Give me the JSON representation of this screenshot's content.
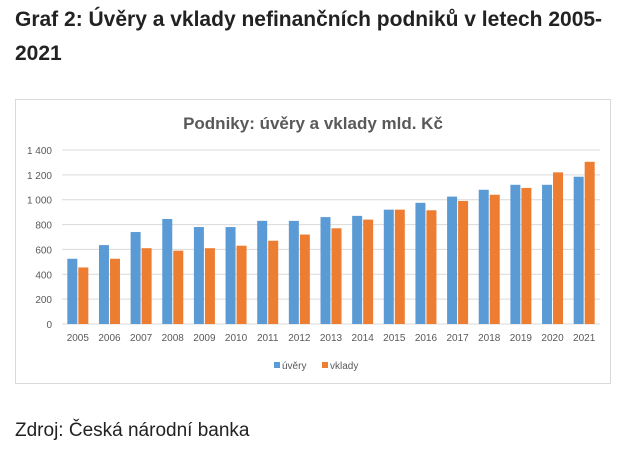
{
  "heading": "Graf 2: Úvěry a vklady nefinančních podniků v letech 2005-2021",
  "source": "Zdroj: Česká národní banka",
  "colors": {
    "uvery": "#5b9bd5",
    "vklady": "#ed7d31",
    "grid": "#d9d9d9",
    "text": "#595959"
  },
  "chart_data": {
    "type": "bar",
    "title": "Podniky: úvěry a vklady mld. Kč",
    "xlabel": "",
    "ylabel": "",
    "ylim": [
      0,
      1400
    ],
    "yticks": [
      0,
      200,
      400,
      600,
      800,
      1000,
      1200,
      1400
    ],
    "ytick_labels": [
      "0",
      "200",
      "400",
      "600",
      "800",
      "1 000",
      "1 200",
      "1 400"
    ],
    "categories": [
      "2005",
      "2006",
      "2007",
      "2008",
      "2009",
      "2010",
      "2011",
      "2012",
      "2013",
      "2014",
      "2015",
      "2016",
      "2017",
      "2018",
      "2019",
      "2020",
      "2021"
    ],
    "series": [
      {
        "name": "úvěry",
        "color": "#5b9bd5",
        "values": [
          525,
          635,
          740,
          845,
          780,
          780,
          830,
          830,
          860,
          870,
          920,
          975,
          1025,
          1080,
          1120,
          1120,
          1185
        ]
      },
      {
        "name": "vklady",
        "color": "#ed7d31",
        "values": [
          455,
          525,
          610,
          590,
          610,
          630,
          670,
          720,
          770,
          840,
          920,
          915,
          990,
          1040,
          1095,
          1220,
          1305
        ]
      }
    ],
    "grid": true,
    "legend": "bottom"
  }
}
